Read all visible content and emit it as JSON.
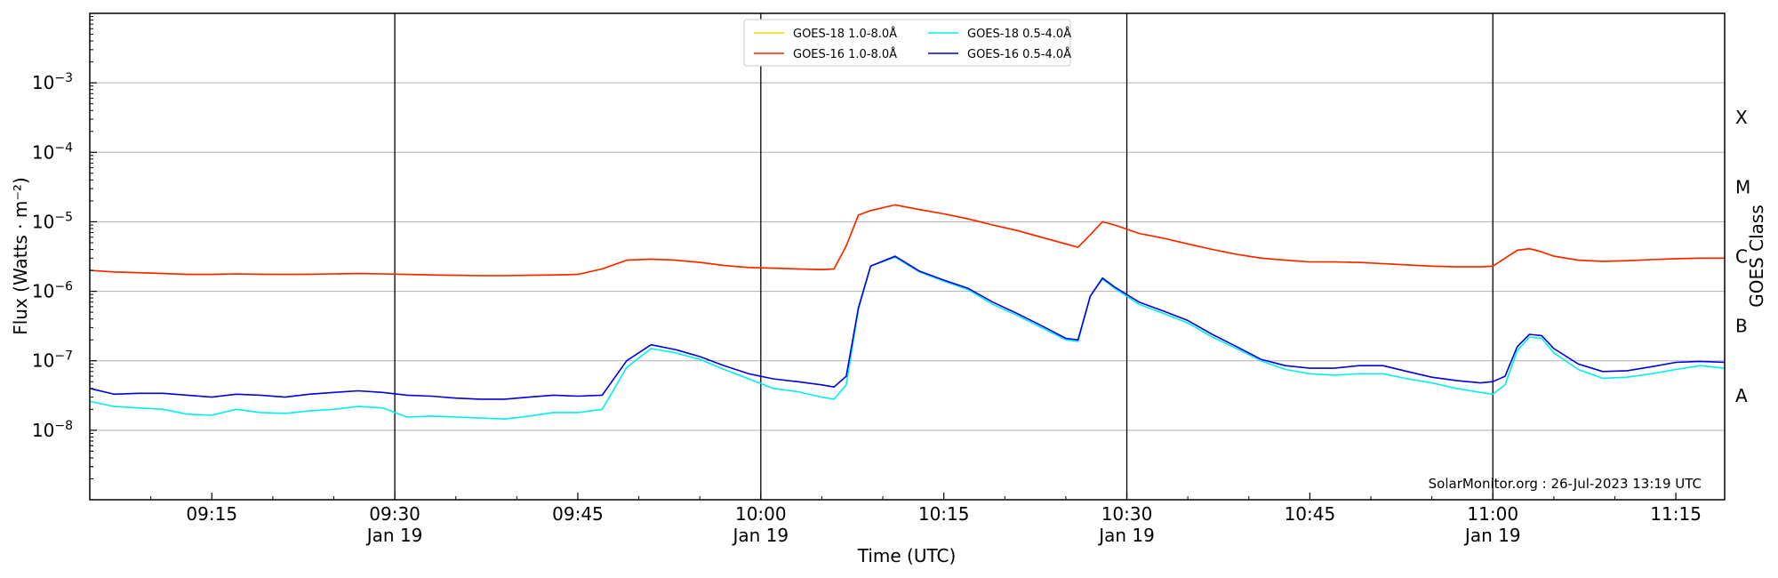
{
  "chart_data": {
    "type": "line",
    "title": "",
    "xlabel": "Time (UTC)",
    "ylabel": "Flux (Watts · m⁻²)",
    "right_label": "GOES Class",
    "y_scale": "log",
    "ylim": [
      1e-09,
      0.01
    ],
    "xlim": [
      "09:05",
      "11:19"
    ],
    "grid": "horizontal",
    "legend_placement": "top-center",
    "credit": "SolarMonitor.org : 26-Jul-2023 13:19 UTC",
    "x_ticks": [
      {
        "time": "09:15",
        "label": "09:15",
        "date": ""
      },
      {
        "time": "09:30",
        "label": "09:30",
        "date": "Jan 19"
      },
      {
        "time": "09:45",
        "label": "09:45",
        "date": ""
      },
      {
        "time": "10:00",
        "label": "10:00",
        "date": "Jan 19"
      },
      {
        "time": "10:15",
        "label": "10:15",
        "date": ""
      },
      {
        "time": "10:30",
        "label": "10:30",
        "date": "Jan 19"
      },
      {
        "time": "10:45",
        "label": "10:45",
        "date": ""
      },
      {
        "time": "11:00",
        "label": "11:00",
        "date": "Jan 19"
      },
      {
        "time": "11:15",
        "label": "11:15",
        "date": ""
      }
    ],
    "vlines": [
      "09:30",
      "10:00",
      "10:30",
      "11:00"
    ],
    "y_ticks": [
      {
        "value": 1e-08,
        "base": "10",
        "exp": "−8"
      },
      {
        "value": 1e-07,
        "base": "10",
        "exp": "−7"
      },
      {
        "value": 1e-06,
        "base": "10",
        "exp": "−6"
      },
      {
        "value": 1e-05,
        "base": "10",
        "exp": "−5"
      },
      {
        "value": 0.0001,
        "base": "10",
        "exp": "−4"
      },
      {
        "value": 0.001,
        "base": "10",
        "exp": "−3"
      }
    ],
    "goes_classes": [
      {
        "label": "A",
        "value": 3.16e-08
      },
      {
        "label": "B",
        "value": 3.16e-07
      },
      {
        "label": "C",
        "value": 3.16e-06
      },
      {
        "label": "M",
        "value": 3.16e-05
      },
      {
        "label": "X",
        "value": 0.000316
      }
    ],
    "x": [
      "09:05",
      "09:07",
      "09:09",
      "09:11",
      "09:13",
      "09:15",
      "09:17",
      "09:19",
      "09:21",
      "09:23",
      "09:25",
      "09:27",
      "09:29",
      "09:31",
      "09:33",
      "09:35",
      "09:37",
      "09:39",
      "09:41",
      "09:43",
      "09:45",
      "09:47",
      "09:49",
      "09:51",
      "09:53",
      "09:55",
      "09:57",
      "09:59",
      "10:01",
      "10:03",
      "10:05",
      "10:06",
      "10:07",
      "10:08",
      "10:09",
      "10:11",
      "10:13",
      "10:15",
      "10:17",
      "10:19",
      "10:21",
      "10:23",
      "10:25",
      "10:26",
      "10:27",
      "10:28",
      "10:29",
      "10:31",
      "10:33",
      "10:35",
      "10:37",
      "10:39",
      "10:41",
      "10:43",
      "10:45",
      "10:47",
      "10:49",
      "10:51",
      "10:53",
      "10:55",
      "10:57",
      "10:59",
      "11:00",
      "11:01",
      "11:02",
      "11:03",
      "11:04",
      "11:05",
      "11:07",
      "11:09",
      "11:11",
      "11:13",
      "11:15",
      "11:17",
      "11:19"
    ],
    "series": [
      {
        "name": "GOES-18 1.0-8.0Å",
        "color": "#ffd700",
        "values": [
          2e-06,
          1.9e-06,
          1.85e-06,
          1.8e-06,
          1.75e-06,
          1.75e-06,
          1.78e-06,
          1.76e-06,
          1.75e-06,
          1.76e-06,
          1.78e-06,
          1.8e-06,
          1.78e-06,
          1.75e-06,
          1.72e-06,
          1.7e-06,
          1.68e-06,
          1.68e-06,
          1.7e-06,
          1.72e-06,
          1.75e-06,
          2.1e-06,
          2.8e-06,
          2.9e-06,
          2.8e-06,
          2.6e-06,
          2.35e-06,
          2.2e-06,
          2.15e-06,
          2.1e-06,
          2.05e-06,
          2.1e-06,
          4.5e-06,
          1.25e-05,
          1.45e-05,
          1.75e-05,
          1.5e-05,
          1.3e-05,
          1.1e-05,
          9e-06,
          7.5e-06,
          6e-06,
          4.8e-06,
          4.3e-06,
          6.5e-06,
          1e-05,
          9e-06,
          6.8e-06,
          5.8e-06,
          4.8e-06,
          4e-06,
          3.4e-06,
          3e-06,
          2.8e-06,
          2.65e-06,
          2.65e-06,
          2.6e-06,
          2.5e-06,
          2.4e-06,
          2.3e-06,
          2.25e-06,
          2.25e-06,
          2.3e-06,
          3e-06,
          3.9e-06,
          4.1e-06,
          3.7e-06,
          3.2e-06,
          2.8e-06,
          2.7e-06,
          2.75e-06,
          2.85e-06,
          2.95e-06,
          3e-06,
          3e-06
        ]
      },
      {
        "name": "GOES-16 1.0-8.0Å",
        "color": "#ff2000",
        "values": [
          2e-06,
          1.9e-06,
          1.85e-06,
          1.8e-06,
          1.75e-06,
          1.75e-06,
          1.78e-06,
          1.76e-06,
          1.75e-06,
          1.76e-06,
          1.78e-06,
          1.8e-06,
          1.78e-06,
          1.75e-06,
          1.72e-06,
          1.7e-06,
          1.68e-06,
          1.68e-06,
          1.7e-06,
          1.72e-06,
          1.75e-06,
          2.1e-06,
          2.8e-06,
          2.9e-06,
          2.8e-06,
          2.6e-06,
          2.35e-06,
          2.2e-06,
          2.15e-06,
          2.1e-06,
          2.05e-06,
          2.1e-06,
          4.5e-06,
          1.25e-05,
          1.45e-05,
          1.75e-05,
          1.5e-05,
          1.3e-05,
          1.1e-05,
          9e-06,
          7.5e-06,
          6e-06,
          4.8e-06,
          4.3e-06,
          6.5e-06,
          1e-05,
          9e-06,
          6.8e-06,
          5.8e-06,
          4.8e-06,
          4e-06,
          3.4e-06,
          3e-06,
          2.8e-06,
          2.65e-06,
          2.65e-06,
          2.6e-06,
          2.5e-06,
          2.4e-06,
          2.3e-06,
          2.25e-06,
          2.25e-06,
          2.3e-06,
          3e-06,
          3.9e-06,
          4.1e-06,
          3.7e-06,
          3.2e-06,
          2.8e-06,
          2.7e-06,
          2.75e-06,
          2.85e-06,
          2.95e-06,
          3e-06,
          3e-06
        ]
      },
      {
        "name": "GOES-18 0.5-4.0Å",
        "color": "#00f0f0",
        "values": [
          2.6e-08,
          2.2e-08,
          2.1e-08,
          2e-08,
          1.7e-08,
          1.65e-08,
          2e-08,
          1.8e-08,
          1.75e-08,
          1.9e-08,
          2e-08,
          2.2e-08,
          2.1e-08,
          1.55e-08,
          1.6e-08,
          1.55e-08,
          1.5e-08,
          1.45e-08,
          1.6e-08,
          1.8e-08,
          1.8e-08,
          2e-08,
          8e-08,
          1.5e-07,
          1.3e-07,
          1.05e-07,
          7.5e-08,
          5.5e-08,
          4e-08,
          3.6e-08,
          3e-08,
          2.8e-08,
          4.5e-08,
          5.5e-07,
          2.3e-06,
          3.1e-06,
          1.9e-06,
          1.4e-06,
          1.05e-06,
          6.5e-07,
          4.5e-07,
          3e-07,
          2e-07,
          1.9e-07,
          8.5e-07,
          1.5e-06,
          1.1e-06,
          6.5e-07,
          4.8e-07,
          3.5e-07,
          2.2e-07,
          1.5e-07,
          1e-07,
          7.5e-08,
          6.5e-08,
          6.2e-08,
          6.5e-08,
          6.5e-08,
          5.5e-08,
          4.8e-08,
          4e-08,
          3.5e-08,
          3.3e-08,
          4.5e-08,
          1.4e-07,
          2.2e-07,
          2.1e-07,
          1.3e-07,
          7.5e-08,
          5.6e-08,
          5.8e-08,
          6.5e-08,
          7.5e-08,
          8.5e-08,
          7.8e-08
        ]
      },
      {
        "name": "GOES-16 0.5-4.0Å",
        "color": "#0000e0",
        "values": [
          4e-08,
          3.3e-08,
          3.4e-08,
          3.4e-08,
          3.2e-08,
          3e-08,
          3.3e-08,
          3.2e-08,
          3e-08,
          3.3e-08,
          3.5e-08,
          3.7e-08,
          3.5e-08,
          3.2e-08,
          3.1e-08,
          2.9e-08,
          2.8e-08,
          2.8e-08,
          3e-08,
          3.2e-08,
          3.1e-08,
          3.2e-08,
          1e-07,
          1.7e-07,
          1.45e-07,
          1.15e-07,
          8.5e-08,
          6.5e-08,
          5.5e-08,
          5e-08,
          4.5e-08,
          4.2e-08,
          6e-08,
          5.8e-07,
          2.3e-06,
          3.2e-06,
          1.95e-06,
          1.45e-06,
          1.1e-06,
          7e-07,
          4.8e-07,
          3.2e-07,
          2.1e-07,
          2e-07,
          8.5e-07,
          1.55e-06,
          1.15e-06,
          7e-07,
          5.2e-07,
          3.8e-07,
          2.4e-07,
          1.6e-07,
          1.05e-07,
          8.5e-08,
          7.8e-08,
          7.8e-08,
          8.5e-08,
          8.5e-08,
          7e-08,
          5.8e-08,
          5.2e-08,
          4.8e-08,
          5e-08,
          6e-08,
          1.6e-07,
          2.4e-07,
          2.3e-07,
          1.5e-07,
          9e-08,
          7e-08,
          7.2e-08,
          8.2e-08,
          9.5e-08,
          9.8e-08,
          9.5e-08
        ]
      }
    ]
  }
}
